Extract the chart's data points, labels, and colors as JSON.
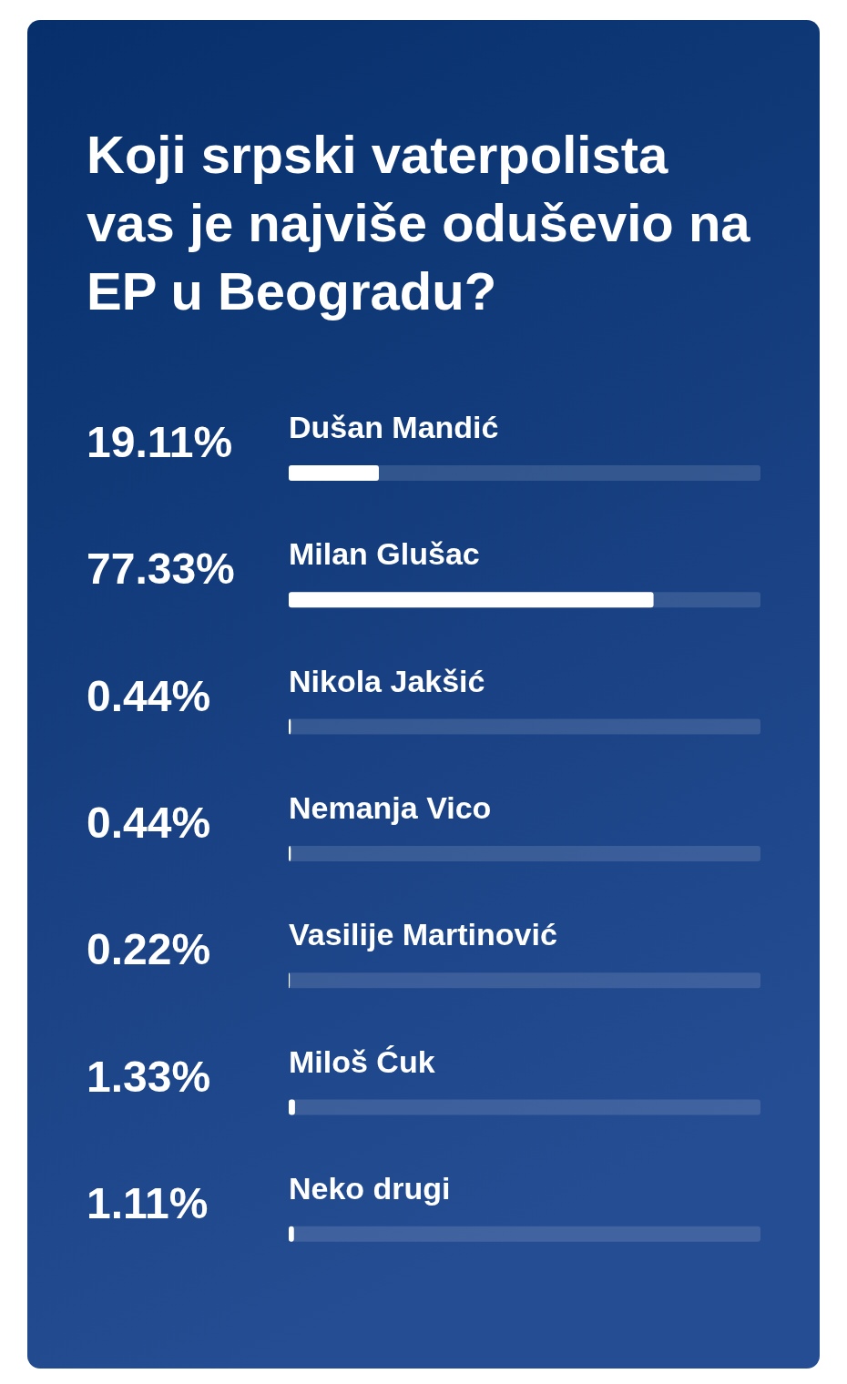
{
  "chart_data": {
    "type": "bar",
    "orientation": "horizontal",
    "title": "Koji srpski vaterpolista vas je najviše oduševio na EP u Beogradu?",
    "categories": [
      "Dušan Mandić",
      "Milan Glušac",
      "Nikola Jakšić",
      "Nemanja Vico",
      "Vasilije Martinović",
      "Miloš Ćuk",
      "Neko drugi"
    ],
    "values": [
      19.11,
      77.33,
      0.44,
      0.44,
      0.22,
      1.33,
      1.11
    ],
    "value_labels": [
      "19.11%",
      "77.33%",
      "0.44%",
      "0.44%",
      "0.22%",
      "1.33%",
      "1.11%"
    ],
    "color": "#ffffff",
    "xlim": [
      0,
      100
    ],
    "tick_labels": "y"
  }
}
